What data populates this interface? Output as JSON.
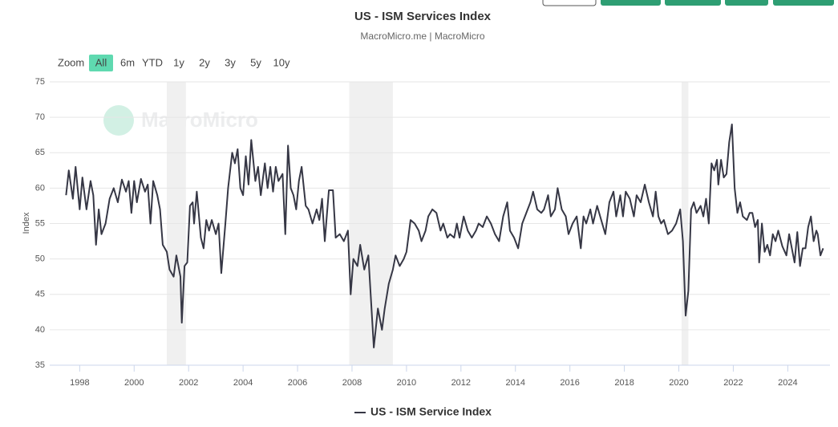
{
  "chart_data": {
    "type": "line",
    "title": "US - ISM Services Index",
    "subtitle": "MacroMicro.me | MacroMicro",
    "watermark": "MacroMicro",
    "y_label": "Index",
    "range_selector": {
      "label": "Zoom",
      "buttons": [
        "All",
        "6m",
        "YTD",
        "1y",
        "2y",
        "3y",
        "5y",
        "10y"
      ],
      "active": 0
    },
    "xlim": [
      1996.9,
      2025.55
    ],
    "xticks": [
      1998,
      2000,
      2002,
      2004,
      2006,
      2008,
      2010,
      2012,
      2014,
      2016,
      2018,
      2020,
      2022,
      2024
    ],
    "ylim": [
      35,
      75
    ],
    "yticks": [
      35,
      40,
      45,
      50,
      55,
      60,
      65,
      70,
      75
    ],
    "grid": true,
    "shaded_ranges": [
      [
        2001.2,
        2001.9
      ],
      [
        2007.9,
        2009.5
      ],
      [
        2020.1,
        2020.35
      ]
    ],
    "shade_color": "#f0f0f0",
    "x": [
      1997.5,
      1997.6,
      1997.75,
      1997.85,
      1998.0,
      1998.1,
      1998.25,
      1998.4,
      1998.5,
      1998.6,
      1998.7,
      1998.8,
      1998.95,
      1999.1,
      1999.25,
      1999.4,
      1999.55,
      1999.7,
      1999.8,
      1999.9,
      2000.0,
      2000.1,
      2000.25,
      2000.4,
      2000.5,
      2000.6,
      2000.7,
      2000.85,
      2000.95,
      2001.05,
      2001.2,
      2001.3,
      2001.45,
      2001.55,
      2001.7,
      2001.75,
      2001.85,
      2001.95,
      2002.05,
      2002.15,
      2002.2,
      2002.3,
      2002.45,
      2002.55,
      2002.65,
      2002.75,
      2002.85,
      2003.0,
      2003.1,
      2003.2,
      2003.35,
      2003.45,
      2003.6,
      2003.7,
      2003.8,
      2003.9,
      2004.0,
      2004.1,
      2004.2,
      2004.3,
      2004.45,
      2004.55,
      2004.65,
      2004.8,
      2004.9,
      2005.0,
      2005.1,
      2005.2,
      2005.3,
      2005.45,
      2005.55,
      2005.65,
      2005.75,
      2005.85,
      2005.95,
      2006.05,
      2006.15,
      2006.3,
      2006.4,
      2006.55,
      2006.7,
      2006.8,
      2006.9,
      2007.0,
      2007.15,
      2007.3,
      2007.4,
      2007.55,
      2007.7,
      2007.85,
      2007.95,
      2008.05,
      2008.2,
      2008.3,
      2008.45,
      2008.6,
      2008.7,
      2008.8,
      2008.95,
      2009.1,
      2009.2,
      2009.35,
      2009.5,
      2009.6,
      2009.75,
      2009.9,
      2010.0,
      2010.15,
      2010.3,
      2010.45,
      2010.55,
      2010.7,
      2010.8,
      2010.95,
      2011.1,
      2011.25,
      2011.35,
      2011.5,
      2011.6,
      2011.75,
      2011.85,
      2011.95,
      2012.1,
      2012.25,
      2012.4,
      2012.55,
      2012.65,
      2012.8,
      2012.95,
      2013.1,
      2013.25,
      2013.4,
      2013.55,
      2013.7,
      2013.8,
      2013.95,
      2014.1,
      2014.25,
      2014.4,
      2014.55,
      2014.65,
      2014.8,
      2014.95,
      2015.05,
      2015.2,
      2015.3,
      2015.45,
      2015.55,
      2015.7,
      2015.85,
      2015.95,
      2016.1,
      2016.25,
      2016.4,
      2016.5,
      2016.6,
      2016.75,
      2016.85,
      2017.0,
      2017.15,
      2017.3,
      2017.45,
      2017.6,
      2017.7,
      2017.85,
      2017.95,
      2018.05,
      2018.2,
      2018.35,
      2018.45,
      2018.6,
      2018.75,
      2018.9,
      2019.05,
      2019.15,
      2019.25,
      2019.35,
      2019.45,
      2019.6,
      2019.75,
      2019.9,
      2020.05,
      2020.15,
      2020.25,
      2020.35,
      2020.45,
      2020.55,
      2020.65,
      2020.8,
      2020.9,
      2021.0,
      2021.1,
      2021.2,
      2021.3,
      2021.4,
      2021.45,
      2021.55,
      2021.65,
      2021.75,
      2021.85,
      2021.95,
      2022.05,
      2022.15,
      2022.25,
      2022.35,
      2022.5,
      2022.6,
      2022.7,
      2022.8,
      2022.9,
      2022.95,
      2023.05,
      2023.15,
      2023.25,
      2023.35,
      2023.45,
      2023.55,
      2023.65,
      2023.8,
      2023.95,
      2024.05,
      2024.15,
      2024.25,
      2024.35,
      2024.45,
      2024.55,
      2024.65,
      2024.75,
      2024.85,
      2024.95,
      2025.05,
      2025.1,
      2025.2,
      2025.3
    ],
    "series": [
      {
        "name": "US - ISM Service Index",
        "color": "#363745",
        "values": [
          59,
          62.5,
          58.5,
          63,
          57,
          61.5,
          57,
          61,
          59,
          52,
          57,
          53.5,
          55,
          58.5,
          60,
          58,
          61.2,
          59.5,
          61,
          56.5,
          61,
          58,
          61.3,
          59.5,
          60.5,
          55,
          61,
          59,
          57,
          52,
          51,
          48.5,
          47.5,
          50.5,
          47.5,
          41,
          49,
          49.5,
          57.5,
          58,
          55,
          59.5,
          53,
          51.5,
          55.5,
          54,
          55.5,
          53.5,
          55,
          48,
          55,
          60,
          65,
          63.5,
          65.5,
          60,
          59,
          64.5,
          60.5,
          66.8,
          61,
          63,
          59,
          63.5,
          60,
          63,
          59.5,
          63,
          61,
          62,
          53.5,
          66,
          60,
          59,
          57,
          61,
          63,
          57.5,
          57,
          55,
          57,
          55.5,
          58.5,
          52.5,
          59.7,
          59.7,
          53,
          53.5,
          52.5,
          54,
          45,
          50,
          49,
          52,
          48.5,
          50.5,
          44,
          37.5,
          43,
          40,
          43,
          46.5,
          48.5,
          50.5,
          49,
          50,
          51,
          55.5,
          55,
          54,
          52.5,
          54,
          56,
          57,
          56.5,
          54,
          55,
          53,
          53.5,
          53,
          55,
          53,
          56,
          54,
          53,
          54,
          55,
          54.5,
          56,
          55,
          53.5,
          52.5,
          56,
          58,
          54,
          53,
          51.5,
          55,
          56.5,
          58,
          59.5,
          57,
          56.5,
          57,
          59,
          56,
          57,
          60,
          57,
          56,
          53.5,
          55,
          56,
          51.5,
          56,
          55,
          57,
          55,
          57.5,
          55.5,
          53.5,
          58,
          59.5,
          56,
          59,
          56,
          59.5,
          58.5,
          56,
          59,
          58,
          60.5,
          58,
          56,
          59.5,
          56,
          55,
          55.5,
          53.5,
          54,
          55,
          57,
          52.5,
          42,
          45.5,
          57,
          58,
          56.5,
          57.5,
          56,
          58.5,
          55,
          63.5,
          62.5,
          64,
          60.5,
          64,
          61.5,
          62,
          66.5,
          69,
          60,
          56.5,
          58,
          56,
          55.5,
          56.5,
          56.5,
          54.5,
          55.5,
          49.5,
          55,
          51,
          52,
          50.5,
          53.5,
          52.5,
          54,
          51.8,
          50.5,
          53.5,
          51.5,
          49.5,
          53.8,
          49,
          51.5,
          51.5,
          54.5,
          56,
          52.5,
          54,
          53.5,
          50.5,
          51.5
        ]
      }
    ],
    "top_buttons": 5
  }
}
